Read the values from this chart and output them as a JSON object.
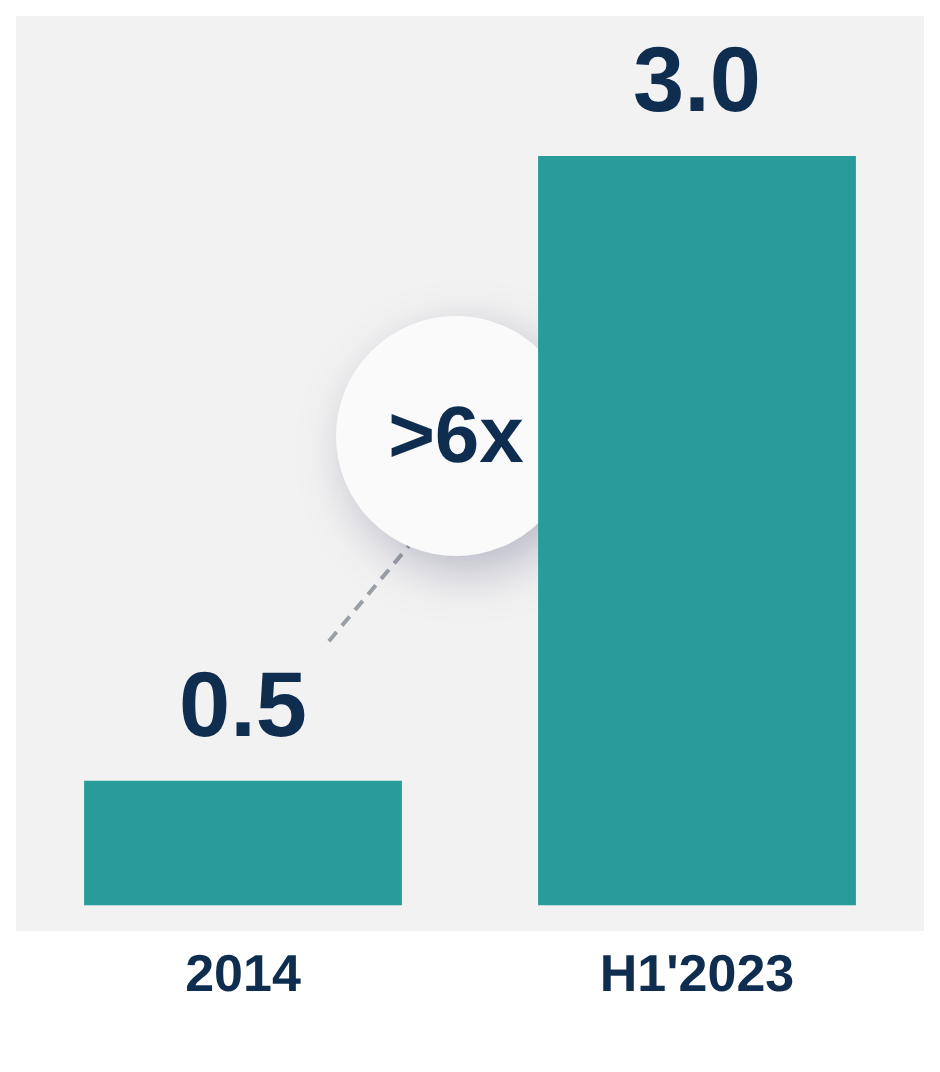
{
  "chart_data": {
    "type": "bar",
    "categories": [
      "2014",
      "H1'2023"
    ],
    "values": [
      0.5,
      3.0
    ],
    "value_labels": [
      "0.5",
      "3.0"
    ],
    "color": "#279c9a",
    "ylim": [
      0,
      3
    ],
    "tick_labels": "x",
    "grid": false,
    "legend": false,
    "annotations": [
      ">6x"
    ]
  }
}
